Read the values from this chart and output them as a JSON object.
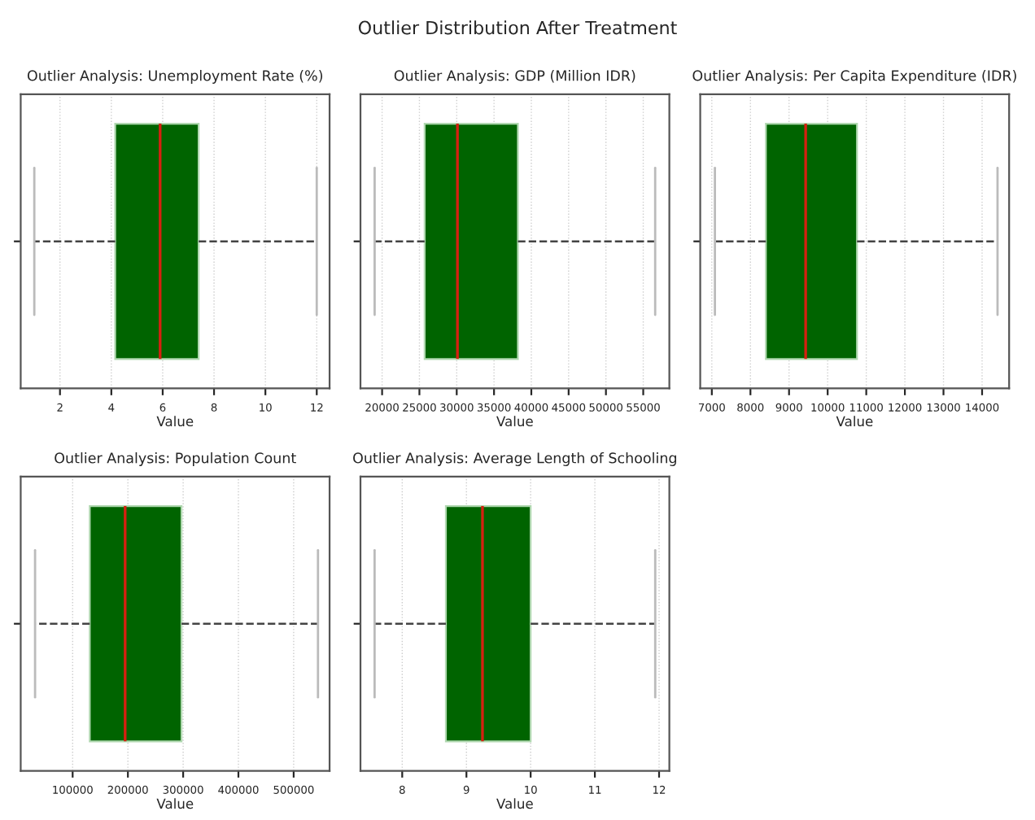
{
  "chart_data": [
    {
      "type": "box",
      "title": "Outlier Analysis: Unemployment Rate (%)",
      "xlabel": "Value",
      "orientation": "horizontal",
      "categories": [
        null
      ],
      "colors": [
        "#006400"
      ],
      "annotations": [
        "Outlier Distribution After Treatment"
      ],
      "boxes": [
        {
          "low": 1.0,
          "q1": 4.15,
          "median": 5.9,
          "q3": 7.4,
          "high": 12.0
        }
      ],
      "xlim": [
        0.47,
        12.5
      ],
      "xticks": [
        2,
        4,
        6,
        8,
        10,
        12
      ],
      "grid": "x",
      "line_style": "dashed"
    },
    {
      "type": "box",
      "title": "Outlier Analysis: GDP (Million IDR)",
      "xlabel": "Value",
      "orientation": "horizontal",
      "categories": [
        null
      ],
      "colors": [
        "#006400"
      ],
      "boxes": [
        {
          "low": 19000,
          "q1": 25700,
          "median": 30100,
          "q3": 38200,
          "high": 56600
        }
      ],
      "xlim": [
        17100,
        58500
      ],
      "xticks": [
        20000,
        25000,
        30000,
        35000,
        40000,
        45000,
        50000,
        55000
      ],
      "grid": "x",
      "line_style": "dashed"
    },
    {
      "type": "box",
      "title": "Outlier Analysis: Per Capita Expenditure (IDR)",
      "xlabel": "Value",
      "orientation": "horizontal",
      "categories": [
        null
      ],
      "colors": [
        "#006400"
      ],
      "boxes": [
        {
          "low": 7080,
          "q1": 8400,
          "median": 9430,
          "q3": 10760,
          "high": 14400
        }
      ],
      "xlim": [
        6700,
        14700
      ],
      "xticks": [
        7000,
        8000,
        9000,
        10000,
        11000,
        12000,
        13000,
        14000
      ],
      "grid": "x",
      "line_style": "dashed"
    },
    {
      "type": "box",
      "title": "Outlier Analysis: Population Count",
      "xlabel": "Value",
      "orientation": "horizontal",
      "categories": [
        null
      ],
      "colors": [
        "#006400"
      ],
      "boxes": [
        {
          "low": 32000,
          "q1": 131000,
          "median": 195000,
          "q3": 297000,
          "high": 544000
        }
      ],
      "xlim": [
        6000,
        565000
      ],
      "xticks": [
        100000,
        200000,
        300000,
        400000,
        500000
      ],
      "grid": "x",
      "line_style": "dashed"
    },
    {
      "type": "box",
      "title": "Outlier Analysis: Average Length of Schooling",
      "xlabel": "Value",
      "orientation": "horizontal",
      "categories": [
        null
      ],
      "colors": [
        "#006400"
      ],
      "boxes": [
        {
          "low": 7.57,
          "q1": 8.68,
          "median": 9.25,
          "q3": 10.0,
          "high": 11.94
        }
      ],
      "xlim": [
        7.35,
        12.16
      ],
      "xticks": [
        8,
        9,
        10,
        11,
        12
      ],
      "grid": "x",
      "line_style": "dashed"
    }
  ]
}
